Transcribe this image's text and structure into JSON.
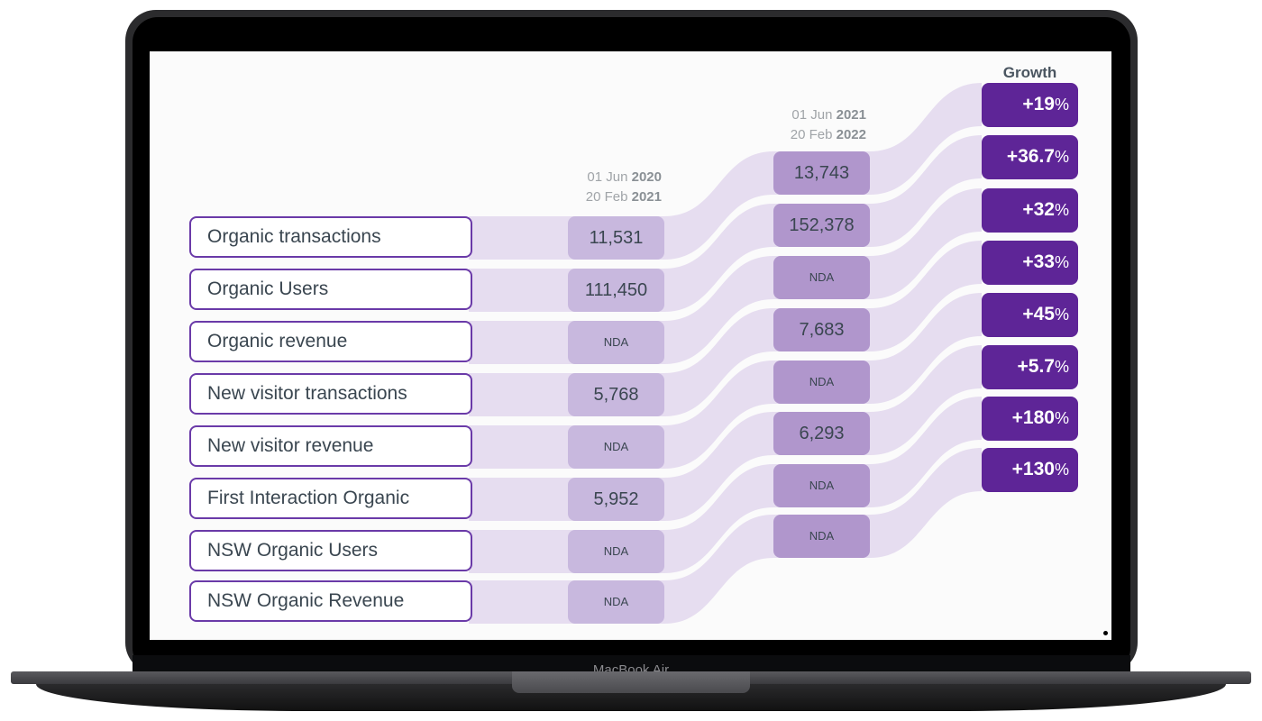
{
  "device": {
    "brand": "MacBook Air"
  },
  "columns": {
    "period1": {
      "line1_day": "01 Jun",
      "line1_year": "2020",
      "line2_day": "20 Feb",
      "line2_year": "2021"
    },
    "period2": {
      "line1_day": "01 Jun",
      "line1_year": "2021",
      "line2_day": "20 Feb",
      "line2_year": "2022"
    },
    "growth": "Growth"
  },
  "metrics": [
    "Organic transactions",
    "Organic Users",
    "Organic revenue",
    "New visitor transactions",
    "New visitor revenue",
    "First Interaction Organic",
    "NSW Organic Users",
    "NSW Organic Revenue"
  ],
  "period1_values": [
    "11,531",
    "111,450",
    "NDA",
    "5,768",
    "NDA",
    "5,952",
    "NDA",
    "NDA"
  ],
  "period2_values": [
    "13,743",
    "152,378",
    "NDA",
    "7,683",
    "NDA",
    "6,293",
    "NDA",
    "NDA"
  ],
  "growth_values": [
    "+19",
    "+36.7",
    "+32",
    "+33",
    "+45",
    "+5.7",
    "+180",
    "+130"
  ],
  "percent_sign": "%",
  "colors": {
    "label_border": "#6a3aa8",
    "band": "#e6ddf0",
    "period1": "#c8b8de",
    "period2": "#b096cc",
    "growth": "#5e2597"
  }
}
